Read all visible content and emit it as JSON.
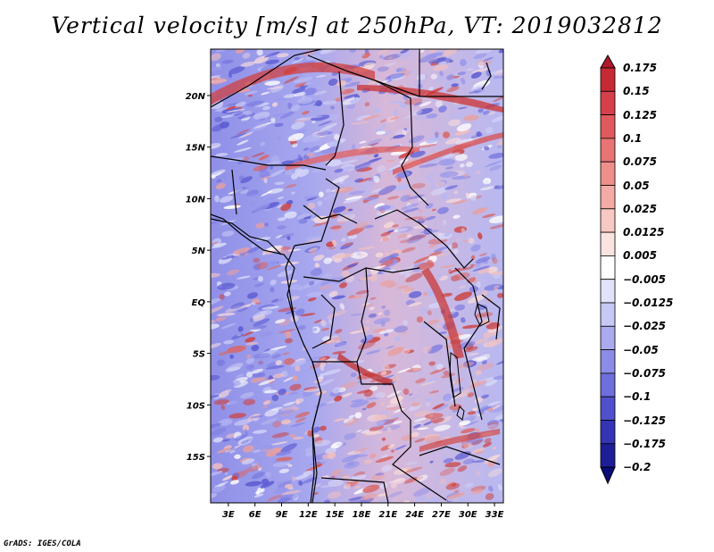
{
  "title": "Vertical velocity [m/s] at 250hPa, VT: 2019032812",
  "credit": "GrADS: IGES/COLA",
  "map": {
    "lon_ticks": [
      "3E",
      "6E",
      "9E",
      "12E",
      "15E",
      "18E",
      "21E",
      "24E",
      "27E",
      "30E",
      "33E"
    ],
    "lat_ticks": [
      "20N",
      "15N",
      "10N",
      "5N",
      "EQ",
      "5S",
      "10S",
      "15S"
    ],
    "lon_range": [
      1,
      34
    ],
    "lat_range": [
      -19.5,
      24.5
    ]
  },
  "colorbar": {
    "labels": [
      "0.175",
      "0.15",
      "0.125",
      "0.1",
      "0.075",
      "0.05",
      "0.025",
      "0.0125",
      "0.005",
      "−0.005",
      "−0.0125",
      "−0.025",
      "−0.05",
      "−0.075",
      "−0.1",
      "−0.125",
      "−0.175",
      "−0.2"
    ],
    "colors": [
      "#b2182b",
      "#c62b35",
      "#d6404a",
      "#e05a5d",
      "#e87473",
      "#ef8f8b",
      "#f4aba5",
      "#f8c8c2",
      "#fbe3df",
      "#ffffff",
      "#e2e2fb",
      "#c8c8f5",
      "#aaaaee",
      "#8c8ce6",
      "#6e6edc",
      "#5050cc",
      "#3434b4",
      "#1e1e96",
      "#0c0c7a"
    ]
  }
}
